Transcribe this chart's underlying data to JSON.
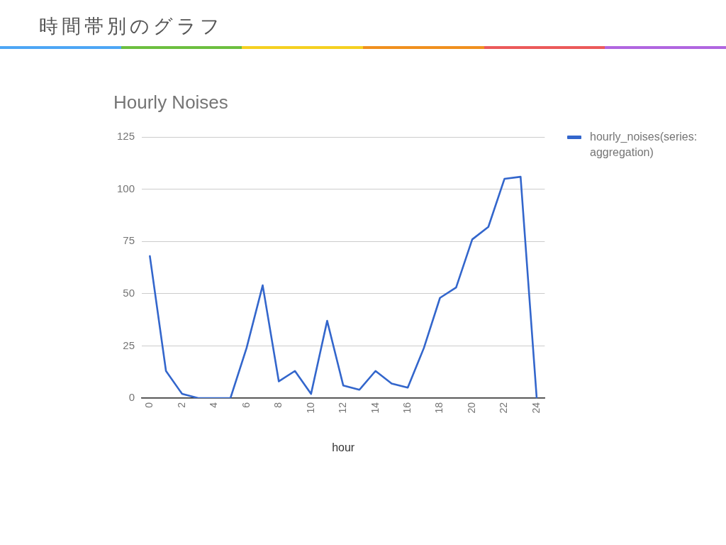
{
  "chart_data": {
    "type": "line",
    "title": "時間帯別のグラフ",
    "subtitle": "Hourly Noises",
    "xlabel": "hour",
    "x": [
      0,
      1,
      2,
      3,
      4,
      5,
      6,
      7,
      8,
      9,
      10,
      11,
      12,
      13,
      14,
      15,
      16,
      17,
      18,
      19,
      20,
      21,
      22,
      23,
      24
    ],
    "series": [
      {
        "name": "hourly_noises(series: aggregation)",
        "color": "#3366cc",
        "values": [
          68,
          13,
          2,
          0,
          0,
          0,
          24,
          54,
          8,
          13,
          2,
          37,
          6,
          4,
          13,
          7,
          5,
          24,
          48,
          53,
          76,
          82,
          105,
          106,
          0
        ]
      }
    ],
    "xlim": [
      -0.5,
      24.5
    ],
    "xticks": [
      0,
      2,
      4,
      6,
      8,
      10,
      12,
      14,
      16,
      18,
      20,
      22,
      24
    ],
    "ylim": [
      0,
      125
    ],
    "yticks": [
      0,
      25,
      50,
      75,
      100,
      125
    ],
    "grid": "y",
    "legend": "right",
    "marker": "none"
  }
}
